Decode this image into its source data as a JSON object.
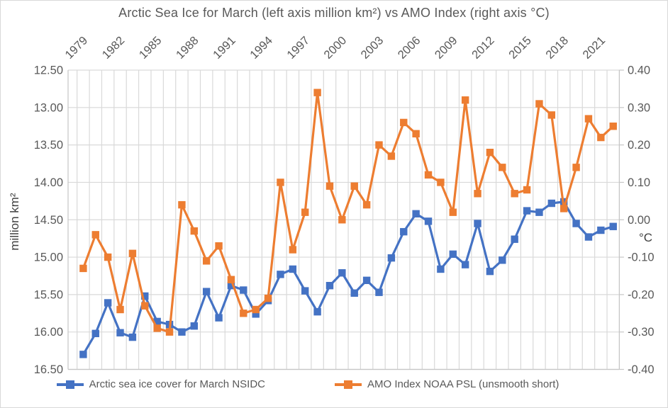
{
  "chart": {
    "title": "Arctic Sea Ice for March (left axis million km²) vs AMO Index (right axis °C)",
    "left_axis_title": "million km²",
    "right_axis_title": "°C",
    "legend": {
      "sea_ice_label": "Arctic sea ice cover for March NSIDC",
      "amo_label": "AMO Index NOAA PSL (unsmooth short)"
    },
    "colors": {
      "sea_ice": "#4472C4",
      "amo": "#ED7D31",
      "gridline": "#D9D9D9",
      "axis_line": "#C6C6C6",
      "tick_text": "#595959"
    }
  },
  "chart_data": {
    "type": "line",
    "title": "Arctic Sea Ice for March (left axis million km²) vs AMO Index (right axis °C)",
    "x": [
      1979,
      1980,
      1981,
      1982,
      1983,
      1984,
      1985,
      1986,
      1987,
      1988,
      1989,
      1990,
      1991,
      1992,
      1993,
      1994,
      1995,
      1996,
      1997,
      1998,
      1999,
      2000,
      2001,
      2002,
      2003,
      2004,
      2005,
      2006,
      2007,
      2008,
      2009,
      2010,
      2011,
      2012,
      2013,
      2014,
      2015,
      2016,
      2017,
      2018,
      2019,
      2020,
      2021,
      2022
    ],
    "x_tick_labels": [
      "1979",
      "1982",
      "1985",
      "1988",
      "1991",
      "1994",
      "1997",
      "2000",
      "2003",
      "2006",
      "2009",
      "2012",
      "2015",
      "2018",
      "2021"
    ],
    "x_tick_step": 3,
    "series": [
      {
        "name": "Arctic sea ice cover for March NSIDC",
        "axis": "left",
        "color": "#4472C4",
        "marker": "square",
        "values": [
          16.3,
          16.02,
          15.61,
          16.01,
          16.07,
          15.52,
          15.86,
          15.9,
          16.0,
          15.92,
          15.46,
          15.81,
          15.38,
          15.44,
          15.76,
          15.58,
          15.23,
          15.16,
          15.45,
          15.73,
          15.38,
          15.21,
          15.48,
          15.31,
          15.47,
          15.01,
          14.66,
          14.42,
          14.52,
          15.16,
          14.96,
          15.1,
          14.55,
          15.19,
          15.04,
          14.76,
          14.38,
          14.4,
          14.28,
          14.26,
          14.55,
          14.73,
          14.64,
          14.59
        ]
      },
      {
        "name": "AMO Index NOAA PSL (unsmooth short)",
        "axis": "right",
        "color": "#ED7D31",
        "marker": "square",
        "values": [
          -0.13,
          -0.04,
          -0.1,
          -0.24,
          -0.09,
          -0.23,
          -0.29,
          -0.3,
          0.04,
          -0.03,
          -0.11,
          -0.07,
          -0.16,
          -0.25,
          -0.24,
          -0.21,
          0.1,
          -0.08,
          0.02,
          0.34,
          0.09,
          0.0,
          0.09,
          0.04,
          0.2,
          0.17,
          0.26,
          0.23,
          0.12,
          0.1,
          0.02,
          0.32,
          0.07,
          0.18,
          0.14,
          0.07,
          0.08,
          0.31,
          0.28,
          0.03,
          0.14,
          0.27,
          0.22,
          0.25
        ]
      }
    ],
    "left_axis": {
      "title": "million km²",
      "min": 12.5,
      "max": 16.5,
      "inverted": true,
      "tick_labels": [
        "12.50",
        "13.00",
        "13.50",
        "14.00",
        "14.50",
        "15.00",
        "15.50",
        "16.00",
        "16.50"
      ]
    },
    "right_axis": {
      "title": "°C",
      "min": -0.4,
      "max": 0.4,
      "tick_labels": [
        "0.40",
        "0.30",
        "0.20",
        "0.10",
        "0.00",
        "-0.10",
        "-0.20",
        "-0.30",
        "-0.40"
      ]
    },
    "grid": true,
    "legend_position": "bottom"
  }
}
